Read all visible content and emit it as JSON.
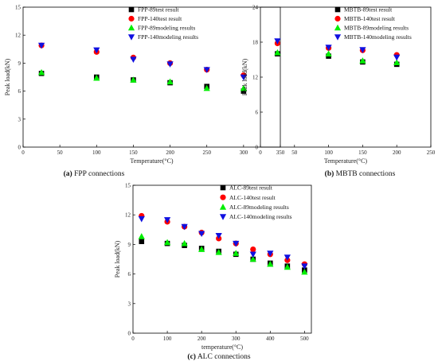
{
  "colors": {
    "series89test": "#000000",
    "series140test": "#ff0000",
    "series89model": "#00ee00",
    "series140model": "#1010e0"
  },
  "chart_data": [
    {
      "id": "a",
      "type": "scatter",
      "caption_label": "(a)",
      "caption_text": "FPP connections",
      "xlabel": "Temperature(°C)",
      "ylabel": "Peak load(kN)",
      "xlim": [
        0,
        350
      ],
      "ylim": [
        0,
        15
      ],
      "xticks": [
        0,
        50,
        100,
        150,
        200,
        250,
        300,
        350
      ],
      "yticks": [
        0,
        3,
        6,
        9,
        12,
        15
      ],
      "legend_position": "top-right",
      "series": [
        {
          "name": "FPP-89test result",
          "marker": "square",
          "color": "#000000",
          "x": [
            25,
            100,
            150,
            200,
            250,
            300
          ],
          "y": [
            7.9,
            7.5,
            7.2,
            6.9,
            6.5,
            6.0
          ]
        },
        {
          "name": "FPP-140test result",
          "marker": "circle",
          "color": "#ff0000",
          "x": [
            25,
            100,
            150,
            200,
            250,
            300
          ],
          "y": [
            10.9,
            10.2,
            9.6,
            9.0,
            8.3,
            7.7
          ]
        },
        {
          "name": "FPP-89modeling results",
          "marker": "triangle-up",
          "color": "#00ee00",
          "x": [
            25,
            100,
            150,
            200,
            250,
            300
          ],
          "y": [
            8.0,
            7.4,
            7.2,
            7.0,
            6.3,
            6.3
          ]
        },
        {
          "name": "FPP-140modeling results",
          "marker": "triangle-down",
          "color": "#1010e0",
          "x": [
            25,
            100,
            150,
            200,
            250,
            300
          ],
          "y": [
            10.9,
            10.4,
            9.4,
            8.9,
            8.3,
            7.5
          ]
        }
      ]
    },
    {
      "id": "b",
      "type": "scatter",
      "caption_label": "(b)",
      "caption_text": "MBTB connections",
      "xlabel": "Temperature(°C)",
      "ylabel": "Peak load(kN)",
      "xlim": [
        0,
        250
      ],
      "ylim": [
        0,
        24
      ],
      "xticks": [
        0,
        50,
        100,
        150,
        200,
        250
      ],
      "yticks": [
        0,
        6,
        12,
        18,
        24
      ],
      "legend_position": "top-right",
      "series": [
        {
          "name": "MBTB-89test result",
          "marker": "square",
          "color": "#000000",
          "x": [
            25,
            100,
            150,
            200
          ],
          "y": [
            16.0,
            15.6,
            14.6,
            14.2
          ]
        },
        {
          "name": "MBTB-140test result",
          "marker": "circle",
          "color": "#ff0000",
          "x": [
            25,
            100,
            150,
            200
          ],
          "y": [
            17.8,
            17.0,
            16.6,
            15.8
          ]
        },
        {
          "name": "MBTB-89modeling results",
          "marker": "triangle-up",
          "color": "#00ee00",
          "x": [
            25,
            100,
            150,
            200
          ],
          "y": [
            16.2,
            16.0,
            14.8,
            14.5
          ]
        },
        {
          "name": "MBTB-140modeling results",
          "marker": "triangle-down",
          "color": "#1010e0",
          "x": [
            25,
            100,
            150,
            200
          ],
          "y": [
            18.2,
            17.1,
            16.7,
            15.4
          ]
        }
      ]
    },
    {
      "id": "c",
      "type": "scatter",
      "caption_label": "(c)",
      "caption_text": "ALC connections",
      "xlabel": "temperature(°C)",
      "ylabel": "Peak load(kN)",
      "xlim": [
        0,
        520
      ],
      "ylim": [
        0,
        15
      ],
      "xticks": [
        0,
        100,
        200,
        300,
        400,
        500
      ],
      "yticks": [
        0,
        3,
        6,
        9,
        12,
        15
      ],
      "legend_position": "top-right",
      "series": [
        {
          "name": "ALC-89test result",
          "marker": "square",
          "color": "#000000",
          "x": [
            25,
            100,
            150,
            200,
            250,
            300,
            350,
            400,
            450,
            500
          ],
          "y": [
            9.3,
            9.1,
            8.9,
            8.6,
            8.3,
            8.0,
            7.5,
            7.1,
            6.8,
            6.4
          ]
        },
        {
          "name": "ALC-140test result",
          "marker": "circle",
          "color": "#ff0000",
          "x": [
            25,
            100,
            150,
            200,
            250,
            300,
            350,
            400,
            450,
            500
          ],
          "y": [
            11.9,
            11.3,
            10.8,
            10.2,
            9.6,
            9.1,
            8.5,
            8.0,
            7.4,
            7.0
          ]
        },
        {
          "name": "ALC-89modeling results",
          "marker": "triangle-up",
          "color": "#00ee00",
          "x": [
            25,
            100,
            150,
            200,
            250,
            300,
            350,
            400,
            450,
            500
          ],
          "y": [
            9.8,
            9.2,
            9.1,
            8.5,
            8.2,
            8.1,
            7.5,
            7.0,
            6.7,
            6.2
          ]
        },
        {
          "name": "ALC-140modeling results",
          "marker": "triangle-down",
          "color": "#1010e0",
          "x": [
            25,
            100,
            150,
            200,
            250,
            300,
            350,
            400,
            450,
            500
          ],
          "y": [
            11.6,
            11.5,
            10.8,
            10.1,
            9.9,
            9.1,
            8.0,
            8.1,
            7.7,
            6.8
          ]
        }
      ]
    }
  ]
}
